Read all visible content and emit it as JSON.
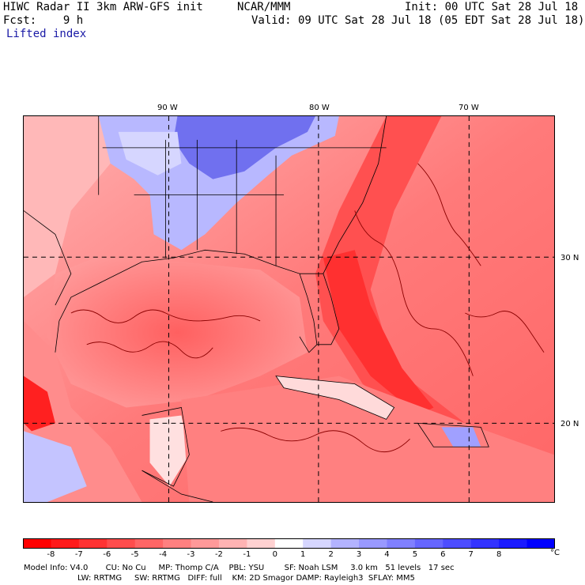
{
  "header": {
    "left_line1": "HIWC Radar II 3km ARW-GFS init",
    "center_line1": "NCAR/MMM",
    "right_line1": "Init: 00 UTC Sat 28 Jul 18",
    "left_line2": "Fcst:    9 h",
    "right_line2": "Valid: 09 UTC Sat 28 Jul 18 (05 EDT Sat 28 Jul 18)",
    "field_name": "Lifted index"
  },
  "map": {
    "longitude_labels": [
      "90 W",
      "80 W",
      "70 W"
    ],
    "latitude_labels": [
      "30 N",
      "20 N"
    ]
  },
  "colorbar": {
    "ticks": [
      "-8",
      "-7",
      "-6",
      "-5",
      "-4",
      "-3",
      "-2",
      "-1",
      "0",
      "1",
      "2",
      "3",
      "4",
      "5",
      "6",
      "7",
      "8"
    ],
    "unit": "°C",
    "colors": [
      "#ff0000",
      "#ff1a1a",
      "#ff3333",
      "#ff4d4d",
      "#ff6666",
      "#ff8080",
      "#ff9999",
      "#ffb3b3",
      "#ffd1d1",
      "#ffffff",
      "#d6d6ff",
      "#b3b3ff",
      "#9999ff",
      "#8080ff",
      "#6666ff",
      "#4d4dff",
      "#3333ff",
      "#1a1aff",
      "#0000ff"
    ]
  },
  "footer": {
    "line1": "Model Info: V4.0       CU: No Cu     MP: Thomp C/A    PBL: YSU        SF: Noah LSM     3.0 km   51 levels   17 sec",
    "line2": "LW: RRTMG     SW: RRTMG   DIFF: full    KM: 2D Smagor DAMP: Rayleigh3  SFLAY: MM5"
  }
}
